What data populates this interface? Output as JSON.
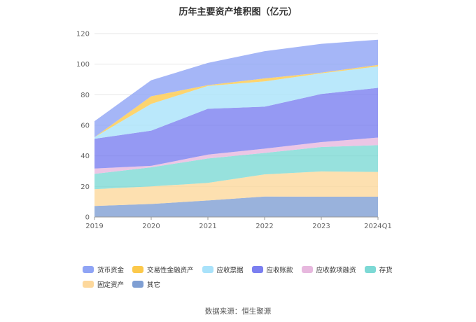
{
  "chart_data": {
    "type": "area",
    "stacked": true,
    "title": "历年主要资产堆积图（亿元）",
    "categories": [
      "2019",
      "2020",
      "2021",
      "2022",
      "2023",
      "2024Q1"
    ],
    "ylim": [
      0,
      120
    ],
    "yticks": [
      0,
      20,
      40,
      60,
      80,
      100,
      120
    ],
    "grid": true,
    "legend_position": "bottom",
    "series": [
      {
        "name": "其它",
        "color": "#7f9fd3",
        "values": [
          7.2,
          8.5,
          10.8,
          13.4,
          13.3,
          13.3
        ]
      },
      {
        "name": "固定资产",
        "color": "#fdd89c",
        "values": [
          11.0,
          11.5,
          11.5,
          14.5,
          16.5,
          16.2
        ]
      },
      {
        "name": "存货",
        "color": "#7dd9d5",
        "values": [
          10.0,
          12.5,
          16.0,
          14.0,
          16.0,
          17.5
        ]
      },
      {
        "name": "应收款项融资",
        "color": "#e7b8de",
        "values": [
          3.5,
          1.0,
          2.5,
          2.8,
          3.2,
          5.0
        ]
      },
      {
        "name": "应收账款",
        "color": "#7b7ff0",
        "values": [
          19.5,
          23.0,
          30.0,
          27.5,
          31.5,
          32.5
        ]
      },
      {
        "name": "应收票据",
        "color": "#a9e2fa",
        "values": [
          1.0,
          17.5,
          15.0,
          16.5,
          13.5,
          14.0
        ]
      },
      {
        "name": "交易性金融资产",
        "color": "#fcc94b",
        "values": [
          0.0,
          5.0,
          0.5,
          2.0,
          0.5,
          1.0
        ]
      },
      {
        "name": "货币资金",
        "color": "#8fa4f5",
        "values": [
          10.5,
          10.5,
          14.5,
          17.8,
          18.8,
          16.5
        ]
      }
    ]
  },
  "legend_order": [
    "货币资金",
    "交易性金融资产",
    "应收票据",
    "应收账款",
    "应收款项融资",
    "存货",
    "固定资产",
    "其它"
  ],
  "source_text": "数据来源：恒生聚源"
}
